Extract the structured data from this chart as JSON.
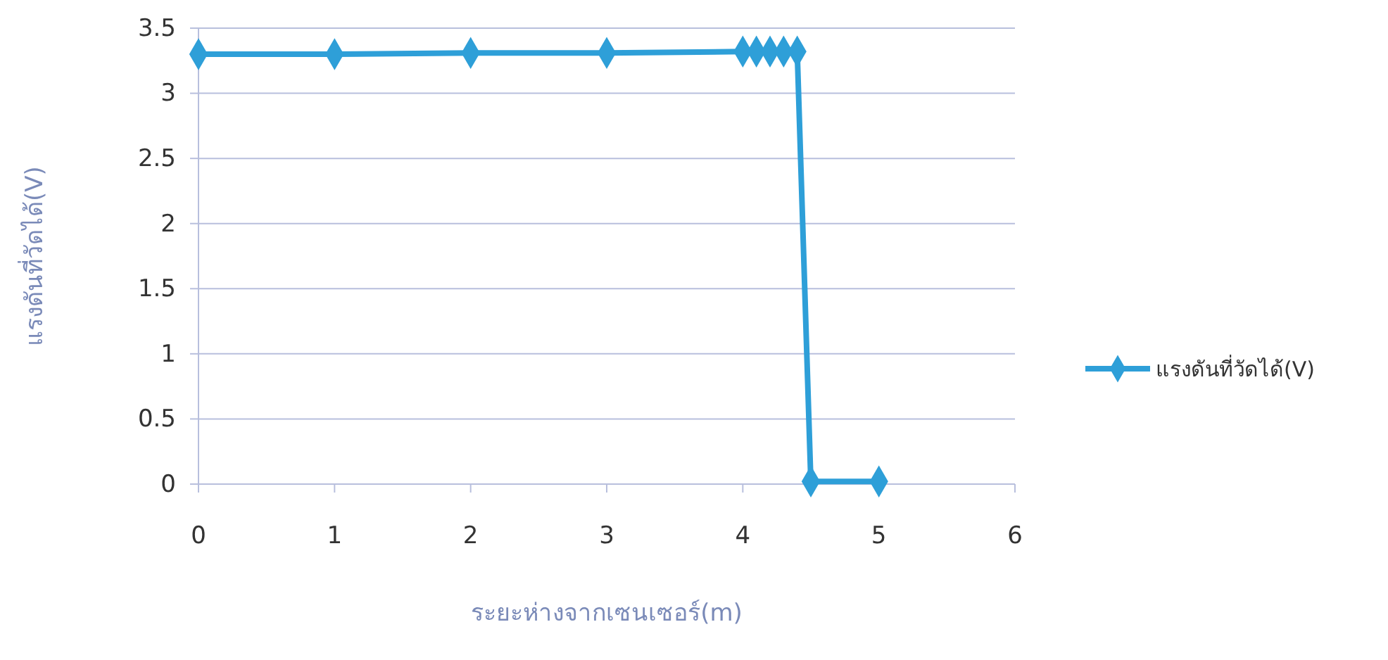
{
  "chart_data": {
    "type": "line",
    "xlabel": "ระยะห่างจากเซนเซอร์(m)",
    "ylabel": "แรงดันที่วัดได้(V)",
    "x": [
      0,
      1,
      2,
      3,
      4,
      4.1,
      4.2,
      4.3,
      4.4,
      4.5,
      5
    ],
    "series": [
      {
        "name": "แรงดันที่วัดได้(V)",
        "color": "#2e9fd8",
        "values": [
          3.3,
          3.3,
          3.31,
          3.31,
          3.32,
          3.32,
          3.32,
          3.32,
          3.32,
          0.02,
          0.02
        ]
      }
    ],
    "xlim": [
      0,
      6
    ],
    "xticks": [
      0,
      1,
      2,
      3,
      4,
      5,
      6
    ],
    "ylim": [
      0,
      3.5
    ],
    "yticks": [
      0,
      0.5,
      1,
      1.5,
      2,
      2.5,
      3,
      3.5
    ],
    "grid": "y",
    "legend": "right",
    "marker": "diamond",
    "line_style": "solid"
  }
}
